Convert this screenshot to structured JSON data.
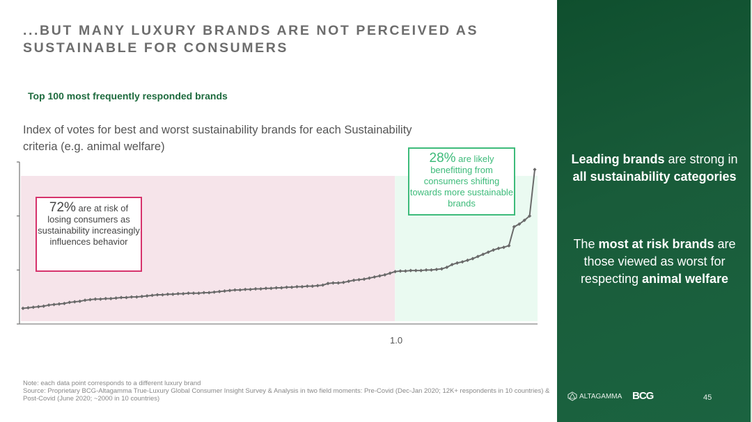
{
  "slide": {
    "title": "...but many luxury brands are not perceived as sustainable for consumers",
    "subtitle": "Top 100 most frequently responded brands",
    "description": "Index of votes for best and worst sustainability brands for each Sustainability criteria (e.g. animal welfare)",
    "callout_risk": {
      "pct": "72%",
      "text": " are at risk of losing consumers as sustainability increasingly influences behavior"
    },
    "callout_benefit": {
      "pct": "28%",
      "text": " are likely benefitting from consumers shifting towards more sustainable brands"
    },
    "note": "Note: each data point corresponds to a different luxury brand",
    "source": "Source: Proprietary BCG-Altagamma True-Luxury Global Consumer Insight Survey & Analysis in two field moments: Pre-Covid (Dec-Jan 2020; 12K+ respondents in 10 countries) & Post-Covid (June 2020; ~2000 in 10 countries)",
    "page_number": "45",
    "logos": {
      "altagamma": "ALTAGAMMA",
      "bcg": "BCG"
    }
  },
  "side_panel": {
    "message1": [
      {
        "text": "Leading brands",
        "bold": true
      },
      {
        "text": " are strong in ",
        "bold": false
      },
      {
        "text": "all sustainability categories",
        "bold": true
      }
    ],
    "message2": [
      {
        "text": "The ",
        "bold": false
      },
      {
        "text": "most at risk brands",
        "bold": true
      },
      {
        "text": " are those viewed as worst for respecting ",
        "bold": false
      },
      {
        "text": "animal welfare",
        "bold": true
      }
    ]
  },
  "colors": {
    "panel_green": "#195c3a",
    "subtitle_green": "#1e6b3e",
    "risk_region": "#f6e4ea",
    "benefit_region": "#eafaf1",
    "risk_border": "#d6336c",
    "benefit_border": "#3dbb7a",
    "line": "#6a6a6a"
  },
  "chart_data": {
    "type": "line",
    "x_tick_labels": [
      {
        "at_value": 1.0,
        "label": "1.0"
      }
    ],
    "y_tick_count": 4,
    "ylim": [
      0,
      3
    ],
    "grid": false,
    "regions": [
      {
        "label": "at risk",
        "share": 0.72,
        "color": "#f6e4ea"
      },
      {
        "label": "benefitting",
        "share": 0.28,
        "color": "#eafaf1"
      }
    ],
    "values": [
      0.29,
      0.3,
      0.31,
      0.32,
      0.33,
      0.35,
      0.36,
      0.37,
      0.38,
      0.4,
      0.41,
      0.42,
      0.44,
      0.45,
      0.46,
      0.46,
      0.47,
      0.47,
      0.48,
      0.49,
      0.49,
      0.5,
      0.5,
      0.51,
      0.52,
      0.53,
      0.54,
      0.54,
      0.55,
      0.55,
      0.56,
      0.56,
      0.57,
      0.57,
      0.57,
      0.58,
      0.58,
      0.59,
      0.6,
      0.61,
      0.62,
      0.63,
      0.63,
      0.64,
      0.64,
      0.65,
      0.65,
      0.66,
      0.66,
      0.67,
      0.67,
      0.68,
      0.68,
      0.69,
      0.69,
      0.7,
      0.7,
      0.71,
      0.72,
      0.75,
      0.76,
      0.76,
      0.77,
      0.79,
      0.81,
      0.82,
      0.83,
      0.85,
      0.87,
      0.89,
      0.91,
      0.94,
      0.97,
      0.98,
      0.98,
      0.99,
      0.99,
      0.99,
      1.0,
      1.0,
      1.01,
      1.02,
      1.05,
      1.1,
      1.13,
      1.15,
      1.18,
      1.21,
      1.25,
      1.29,
      1.33,
      1.37,
      1.4,
      1.42,
      1.45,
      1.8,
      1.85,
      1.92,
      2.0,
      2.86
    ]
  }
}
